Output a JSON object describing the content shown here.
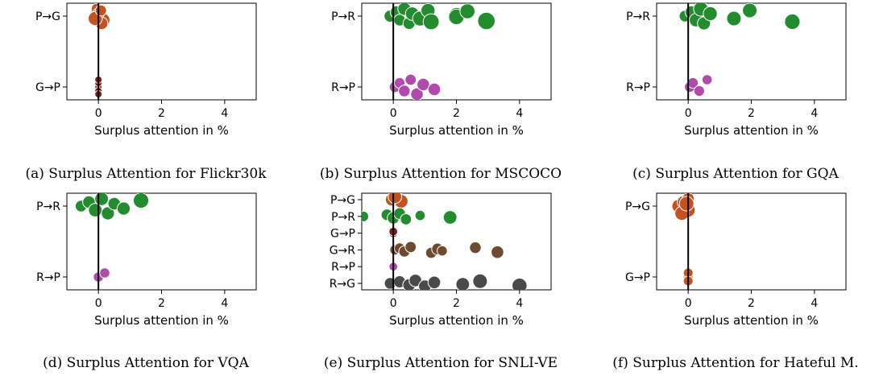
{
  "chart_data": [
    {
      "type": "scatter",
      "caption": "(a) Surplus Attention for Flickr30k",
      "xlabel": "Surplus attention in %",
      "xlim": [
        -1,
        5
      ],
      "xticks": [
        0,
        2,
        4
      ],
      "categories": [
        "P→G",
        "G→P"
      ],
      "series": [
        {
          "category": "P→G",
          "color": "#c4511e",
          "points": [
            [
              -0.1,
              1.6
            ],
            [
              0.05,
              1.8
            ],
            [
              0.15,
              1.8
            ],
            [
              -0.05,
              1.3
            ],
            [
              0.1,
              1.6
            ],
            [
              0.0,
              1.4
            ],
            [
              -0.1,
              1.9
            ],
            [
              0.08,
              1.3
            ]
          ]
        },
        {
          "category": "G→P",
          "color": "#7a1f14",
          "points": [
            [
              0.0,
              0.5
            ],
            [
              0.0,
              0.5
            ],
            [
              0.0,
              0.5
            ],
            [
              0.0,
              0.5
            ],
            [
              0.0,
              0.5
            ]
          ]
        }
      ]
    },
    {
      "type": "scatter",
      "caption": "(b) Surplus Attention for MSCOCO",
      "xlabel": "Surplus attention in %",
      "xlim": [
        -1,
        5
      ],
      "xticks": [
        0,
        2,
        4
      ],
      "categories": [
        "P→R",
        "R→P"
      ],
      "series": [
        {
          "category": "P→R",
          "color": "#238c2e",
          "points": [
            [
              -0.1,
              1.5
            ],
            [
              0.1,
              1.6
            ],
            [
              0.2,
              1.4
            ],
            [
              0.35,
              1.7
            ],
            [
              0.5,
              1.5
            ],
            [
              0.6,
              1.8
            ],
            [
              0.85,
              2.1
            ],
            [
              1.1,
              1.9
            ],
            [
              1.2,
              2.3
            ],
            [
              2.0,
              2.2
            ],
            [
              2.0,
              2.2
            ],
            [
              2.35,
              2.1
            ],
            [
              2.95,
              2.6
            ]
          ]
        },
        {
          "category": "R→P",
          "color": "#b04bab",
          "points": [
            [
              0.05,
              1.3
            ],
            [
              0.2,
              1.2
            ],
            [
              0.35,
              1.4
            ],
            [
              0.55,
              1.3
            ],
            [
              0.75,
              1.6
            ],
            [
              0.95,
              1.6
            ],
            [
              1.3,
              1.6
            ]
          ]
        }
      ]
    },
    {
      "type": "scatter",
      "caption": "(c) Surplus Attention for GQA",
      "xlabel": "Surplus attention in %",
      "xlim": [
        -1,
        5
      ],
      "xticks": [
        0,
        2,
        4
      ],
      "categories": [
        "P→R",
        "R→P"
      ],
      "series": [
        {
          "category": "P→R",
          "color": "#238c2e",
          "points": [
            [
              -0.1,
              1.4
            ],
            [
              0.1,
              1.6
            ],
            [
              0.25,
              1.8
            ],
            [
              0.4,
              2.0
            ],
            [
              0.5,
              1.7
            ],
            [
              0.7,
              1.9
            ],
            [
              1.45,
              2.0
            ],
            [
              1.95,
              2.0
            ],
            [
              3.3,
              2.2
            ]
          ]
        },
        {
          "category": "R→P",
          "color": "#b04bab",
          "points": [
            [
              0.05,
              1.2
            ],
            [
              0.15,
              1.2
            ],
            [
              0.35,
              1.2
            ],
            [
              0.6,
              1.1
            ]
          ]
        }
      ]
    },
    {
      "type": "scatter",
      "caption": "(d) Surplus Attention for VQA",
      "xlabel": "Surplus attention in %",
      "xlim": [
        -1,
        5
      ],
      "xticks": [
        0,
        2,
        4
      ],
      "categories": [
        "P→R",
        "R→P"
      ],
      "series": [
        {
          "category": "P→R",
          "color": "#238c2e",
          "points": [
            [
              -0.55,
              1.4
            ],
            [
              -0.3,
              1.6
            ],
            [
              -0.1,
              1.8
            ],
            [
              0.1,
              1.8
            ],
            [
              0.3,
              1.7
            ],
            [
              0.5,
              1.6
            ],
            [
              0.8,
              1.7
            ],
            [
              1.35,
              2.2
            ]
          ]
        },
        {
          "category": "R→P",
          "color": "#b04bab",
          "points": [
            [
              0.0,
              1.1
            ],
            [
              0.2,
              1.1
            ]
          ]
        }
      ]
    },
    {
      "type": "scatter",
      "caption": "(e) Surplus Attention for SNLI-VE",
      "xlabel": "Surplus attention in %",
      "xlim": [
        -1,
        5
      ],
      "xticks": [
        0,
        2,
        4
      ],
      "categories": [
        "P→G",
        "P→R",
        "G→P",
        "G→R",
        "R→P",
        "R→G"
      ],
      "series": [
        {
          "category": "P→G",
          "color": "#c4511e",
          "points": [
            [
              -0.05,
              1.6
            ],
            [
              0.1,
              1.8
            ],
            [
              0.25,
              1.8
            ],
            [
              0.05,
              1.8
            ]
          ]
        },
        {
          "category": "P→R",
          "color": "#238c2e",
          "points": [
            [
              -0.95,
              1.2
            ],
            [
              -0.2,
              1.4
            ],
            [
              0.0,
              1.5
            ],
            [
              0.2,
              1.4
            ],
            [
              0.4,
              1.3
            ],
            [
              0.85,
              1.1
            ],
            [
              1.8,
              1.8
            ]
          ]
        },
        {
          "category": "G→P",
          "color": "#7a1f14",
          "points": [
            [
              0.0,
              0.8
            ],
            [
              0.0,
              0.8
            ]
          ]
        },
        {
          "category": "G→R",
          "color": "#6e4a2e",
          "points": [
            [
              0.05,
              1.1
            ],
            [
              0.2,
              1.2
            ],
            [
              0.35,
              1.3
            ],
            [
              0.55,
              1.3
            ],
            [
              1.2,
              1.3
            ],
            [
              1.4,
              1.4
            ],
            [
              1.55,
              1.1
            ],
            [
              2.6,
              1.4
            ],
            [
              3.3,
              1.6
            ]
          ]
        },
        {
          "category": "R→P",
          "color": "#b04bab",
          "points": [
            [
              0.0,
              0.8
            ]
          ]
        },
        {
          "category": "R→G",
          "color": "#4a4a4a",
          "points": [
            [
              -0.1,
              1.4
            ],
            [
              0.2,
              1.5
            ],
            [
              0.5,
              1.6
            ],
            [
              0.7,
              1.6
            ],
            [
              1.0,
              1.6
            ],
            [
              1.3,
              1.6
            ],
            [
              2.2,
              1.8
            ],
            [
              2.75,
              2.0
            ],
            [
              4.0,
              2.1
            ]
          ]
        }
      ]
    },
    {
      "type": "scatter",
      "caption": "(f) Surplus Attention for Hateful M.",
      "xlabel": "Surplus attention in %",
      "xlim": [
        -1,
        5
      ],
      "xticks": [
        0,
        2,
        4
      ],
      "categories": [
        "P→G",
        "G→P"
      ],
      "series": [
        {
          "category": "P→G",
          "color": "#c4511e",
          "points": [
            [
              -0.3,
              1.8
            ],
            [
              -0.15,
              1.6
            ],
            [
              0.0,
              1.9
            ],
            [
              0.0,
              1.5
            ],
            [
              -0.2,
              1.9
            ],
            [
              -0.05,
              2.0
            ]
          ]
        },
        {
          "category": "G→P",
          "color": "#c4511e",
          "points": [
            [
              0.0,
              1.0
            ],
            [
              0.0,
              1.0
            ],
            [
              0.0,
              1.0
            ]
          ]
        }
      ]
    }
  ]
}
